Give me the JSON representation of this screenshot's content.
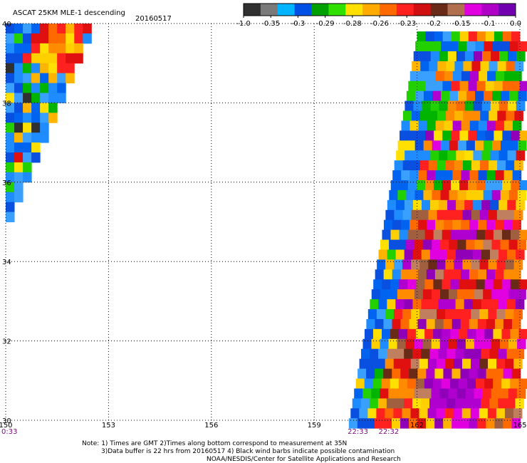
{
  "chart_data": {
    "type": "heatmap",
    "title": "ASCAT 25KM MLE-1 descending",
    "date": "20160517",
    "xlim": [
      150,
      165
    ],
    "ylim": [
      30,
      40
    ],
    "x_tick_labels": [
      "150",
      "153",
      "156",
      "159",
      "162",
      "165"
    ],
    "y_tick_labels": [
      "40",
      "38",
      "36",
      "34",
      "32",
      "30"
    ],
    "grid": true,
    "grid_style": "dotted",
    "colorbar": {
      "placement": "top-right",
      "tick_labels": [
        "-1.0",
        "-0.35",
        "-0.3",
        "-0.29",
        "-0.28",
        "-0.26",
        "-0.23",
        "-0.2",
        "-0.15",
        "-0.1",
        "0.0"
      ],
      "colors": [
        "#303030",
        "#7a7a7a",
        "#00b4ff",
        "#0050e6",
        "#00a000",
        "#30e000",
        "#ffe000",
        "#ffaa00",
        "#ff6a00",
        "#ff2020",
        "#d01010",
        "#6a2a18",
        "#b07050",
        "#e000e0",
        "#b000c8",
        "#7000b0"
      ]
    },
    "time_labels": [
      {
        "text": "0:33",
        "x": 150
      },
      {
        "text": "22:33",
        "x": 160.1
      },
      {
        "text": "22:32",
        "x": 161.0
      }
    ],
    "swaths": [
      {
        "name": "west swath",
        "x_range": [
          150,
          152.4
        ],
        "y_range": [
          35.1,
          40
        ]
      },
      {
        "name": "east swath",
        "x_range": [
          160,
          165
        ],
        "y_range": [
          30,
          39.8
        ]
      }
    ],
    "notes": [
      "Note: 1) Times are GMT 2)Times along bottom correspond to measurement at 35N",
      "3)Data buffer is 22 hrs from 20160517 4) Black wind barbs indicate possible contamination",
      "NOAA/NESDIS/Center for Satellite Applications and Research"
    ]
  }
}
